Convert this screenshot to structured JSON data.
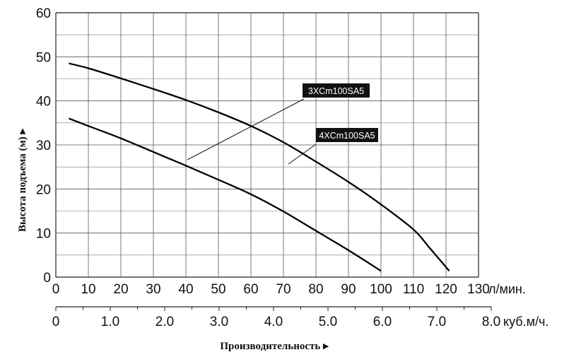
{
  "chart_data": {
    "type": "line",
    "ylabel": "Высота подъема (м)",
    "xlabel": "Производительность",
    "y_arrow": "▸",
    "x_arrow": "▸",
    "ylim": [
      0,
      60
    ],
    "yticks": [
      0,
      10,
      20,
      30,
      40,
      50,
      60
    ],
    "x_lpm": {
      "lim": [
        0,
        130
      ],
      "ticks": [
        0,
        10,
        20,
        30,
        40,
        50,
        60,
        70,
        80,
        90,
        100,
        110,
        120,
        130
      ],
      "unit": "л/мин."
    },
    "x_m3h": {
      "lim": [
        0,
        8.0
      ],
      "ticks": [
        "0",
        "1.0",
        "2.0",
        "3.0",
        "4.0",
        "5.0",
        "6.0",
        "7.0",
        "8.0"
      ],
      "unit": "куб.м/ч."
    },
    "grid": true,
    "series": [
      {
        "name": "3XCm100SA5",
        "x": [
          4,
          10,
          20,
          30,
          40,
          50,
          60,
          70,
          80,
          90,
          100
        ],
        "y": [
          36,
          34.3,
          31.5,
          28.4,
          25.3,
          22.1,
          18.8,
          14.9,
          10.5,
          6.1,
          1.4
        ]
      },
      {
        "name": "4XCm100SA5",
        "x": [
          4,
          10,
          20,
          30,
          40,
          50,
          60,
          70,
          80,
          90,
          100,
          110,
          115,
          121
        ],
        "y": [
          48.5,
          47.4,
          45.1,
          42.7,
          40.2,
          37.4,
          34.3,
          30.6,
          26.2,
          21.6,
          16.5,
          10.8,
          6.6,
          1.4
        ]
      }
    ]
  }
}
